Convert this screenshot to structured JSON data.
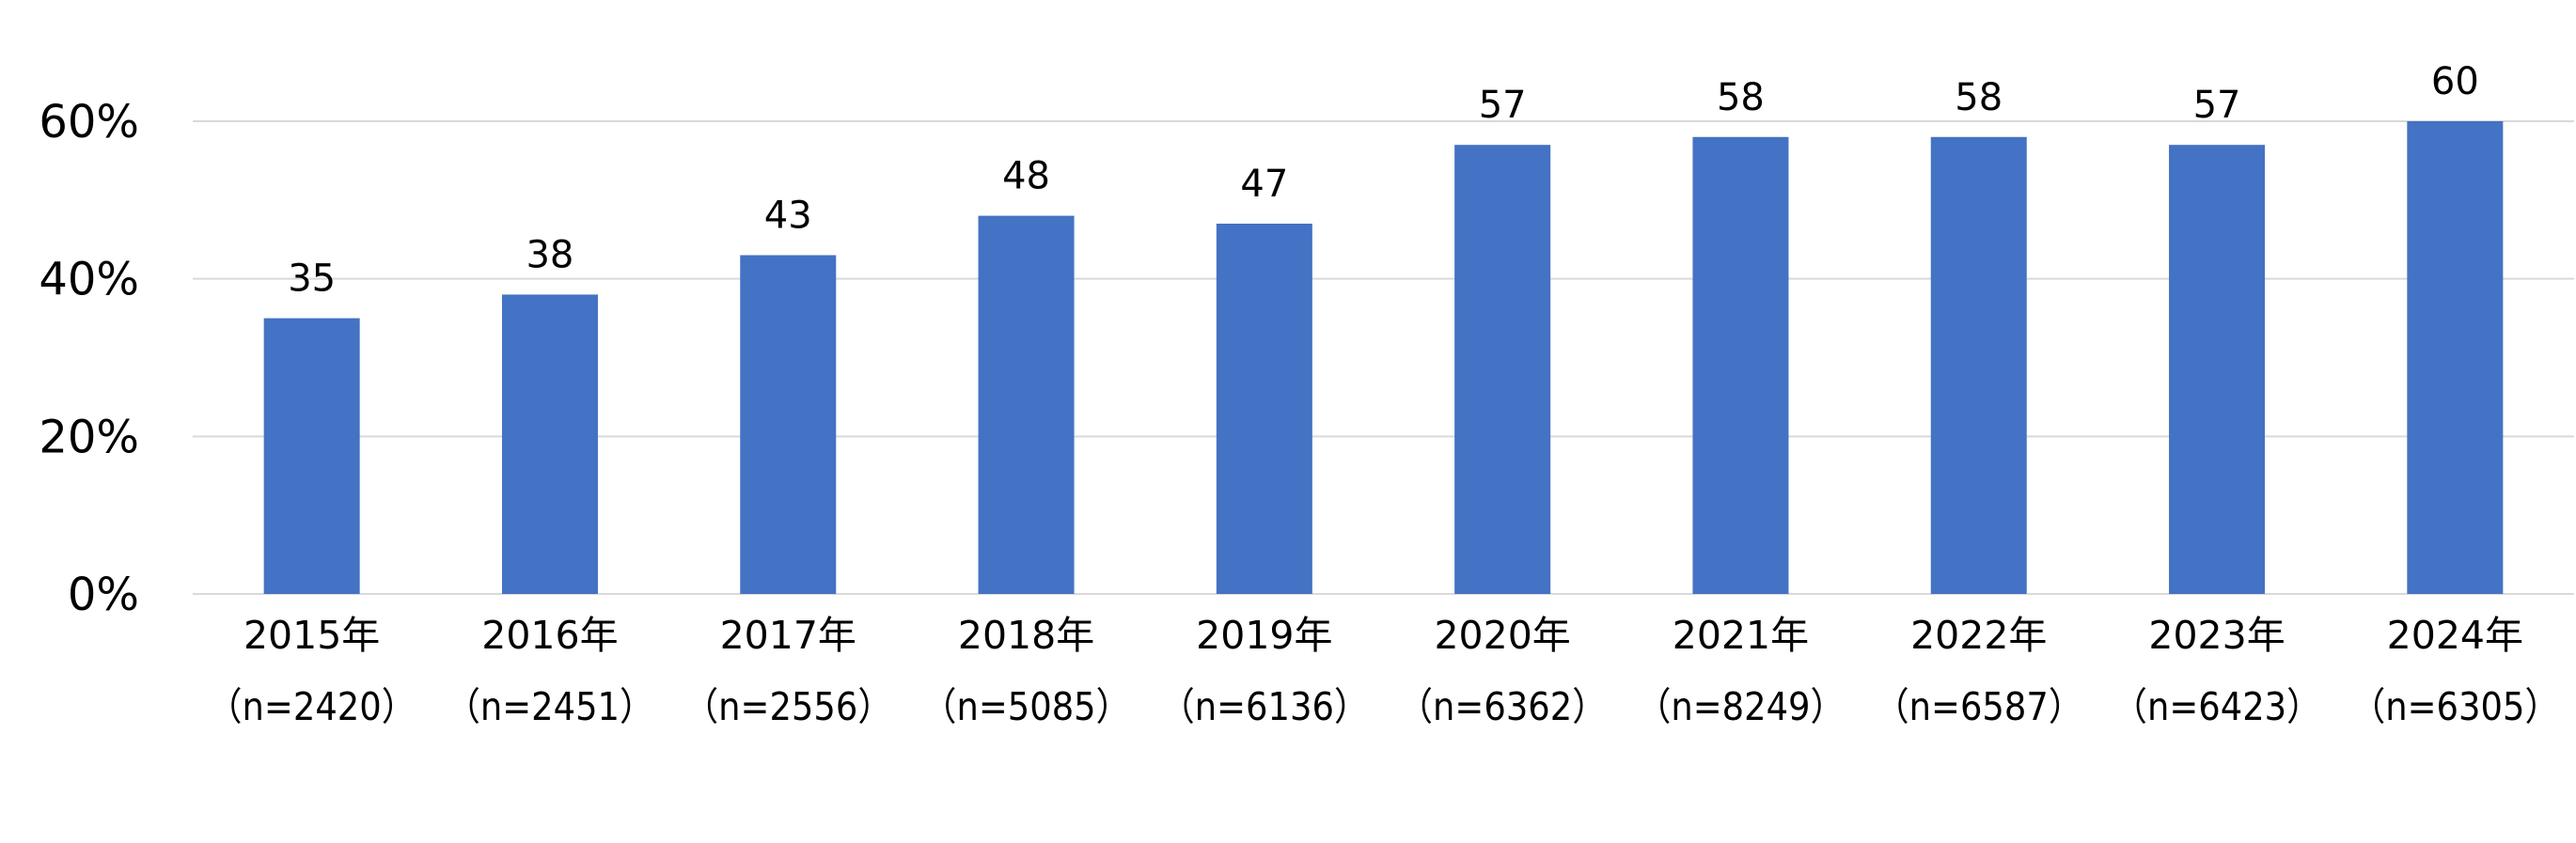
{
  "chart_data": {
    "type": "bar",
    "categories": [
      "2015年",
      "2016年",
      "2017年",
      "2018年",
      "2019年",
      "2020年",
      "2021年",
      "2022年",
      "2023年",
      "2024年"
    ],
    "category_sublabels": [
      "（n=2420）",
      "（n=2451）",
      "（n=2556）",
      "（n=5085）",
      "（n=6136）",
      "（n=6362）",
      "（n=8249）",
      "（n=6587）",
      "（n=6423）",
      "（n=6305）"
    ],
    "values": [
      35,
      38,
      43,
      48,
      47,
      57,
      58,
      58,
      57,
      60
    ],
    "value_labels": [
      "35",
      "38",
      "43",
      "48",
      "47",
      "57",
      "58",
      "58",
      "57",
      "60"
    ],
    "bar_color": "#4472C4",
    "gridline_color": "#D9D9D9",
    "ylim": [
      0,
      60
    ],
    "yticks": [
      0,
      20,
      40,
      60
    ],
    "ytick_labels": [
      "0%",
      "20%",
      "40%",
      "60%"
    ],
    "grid": true,
    "legend": "none"
  }
}
